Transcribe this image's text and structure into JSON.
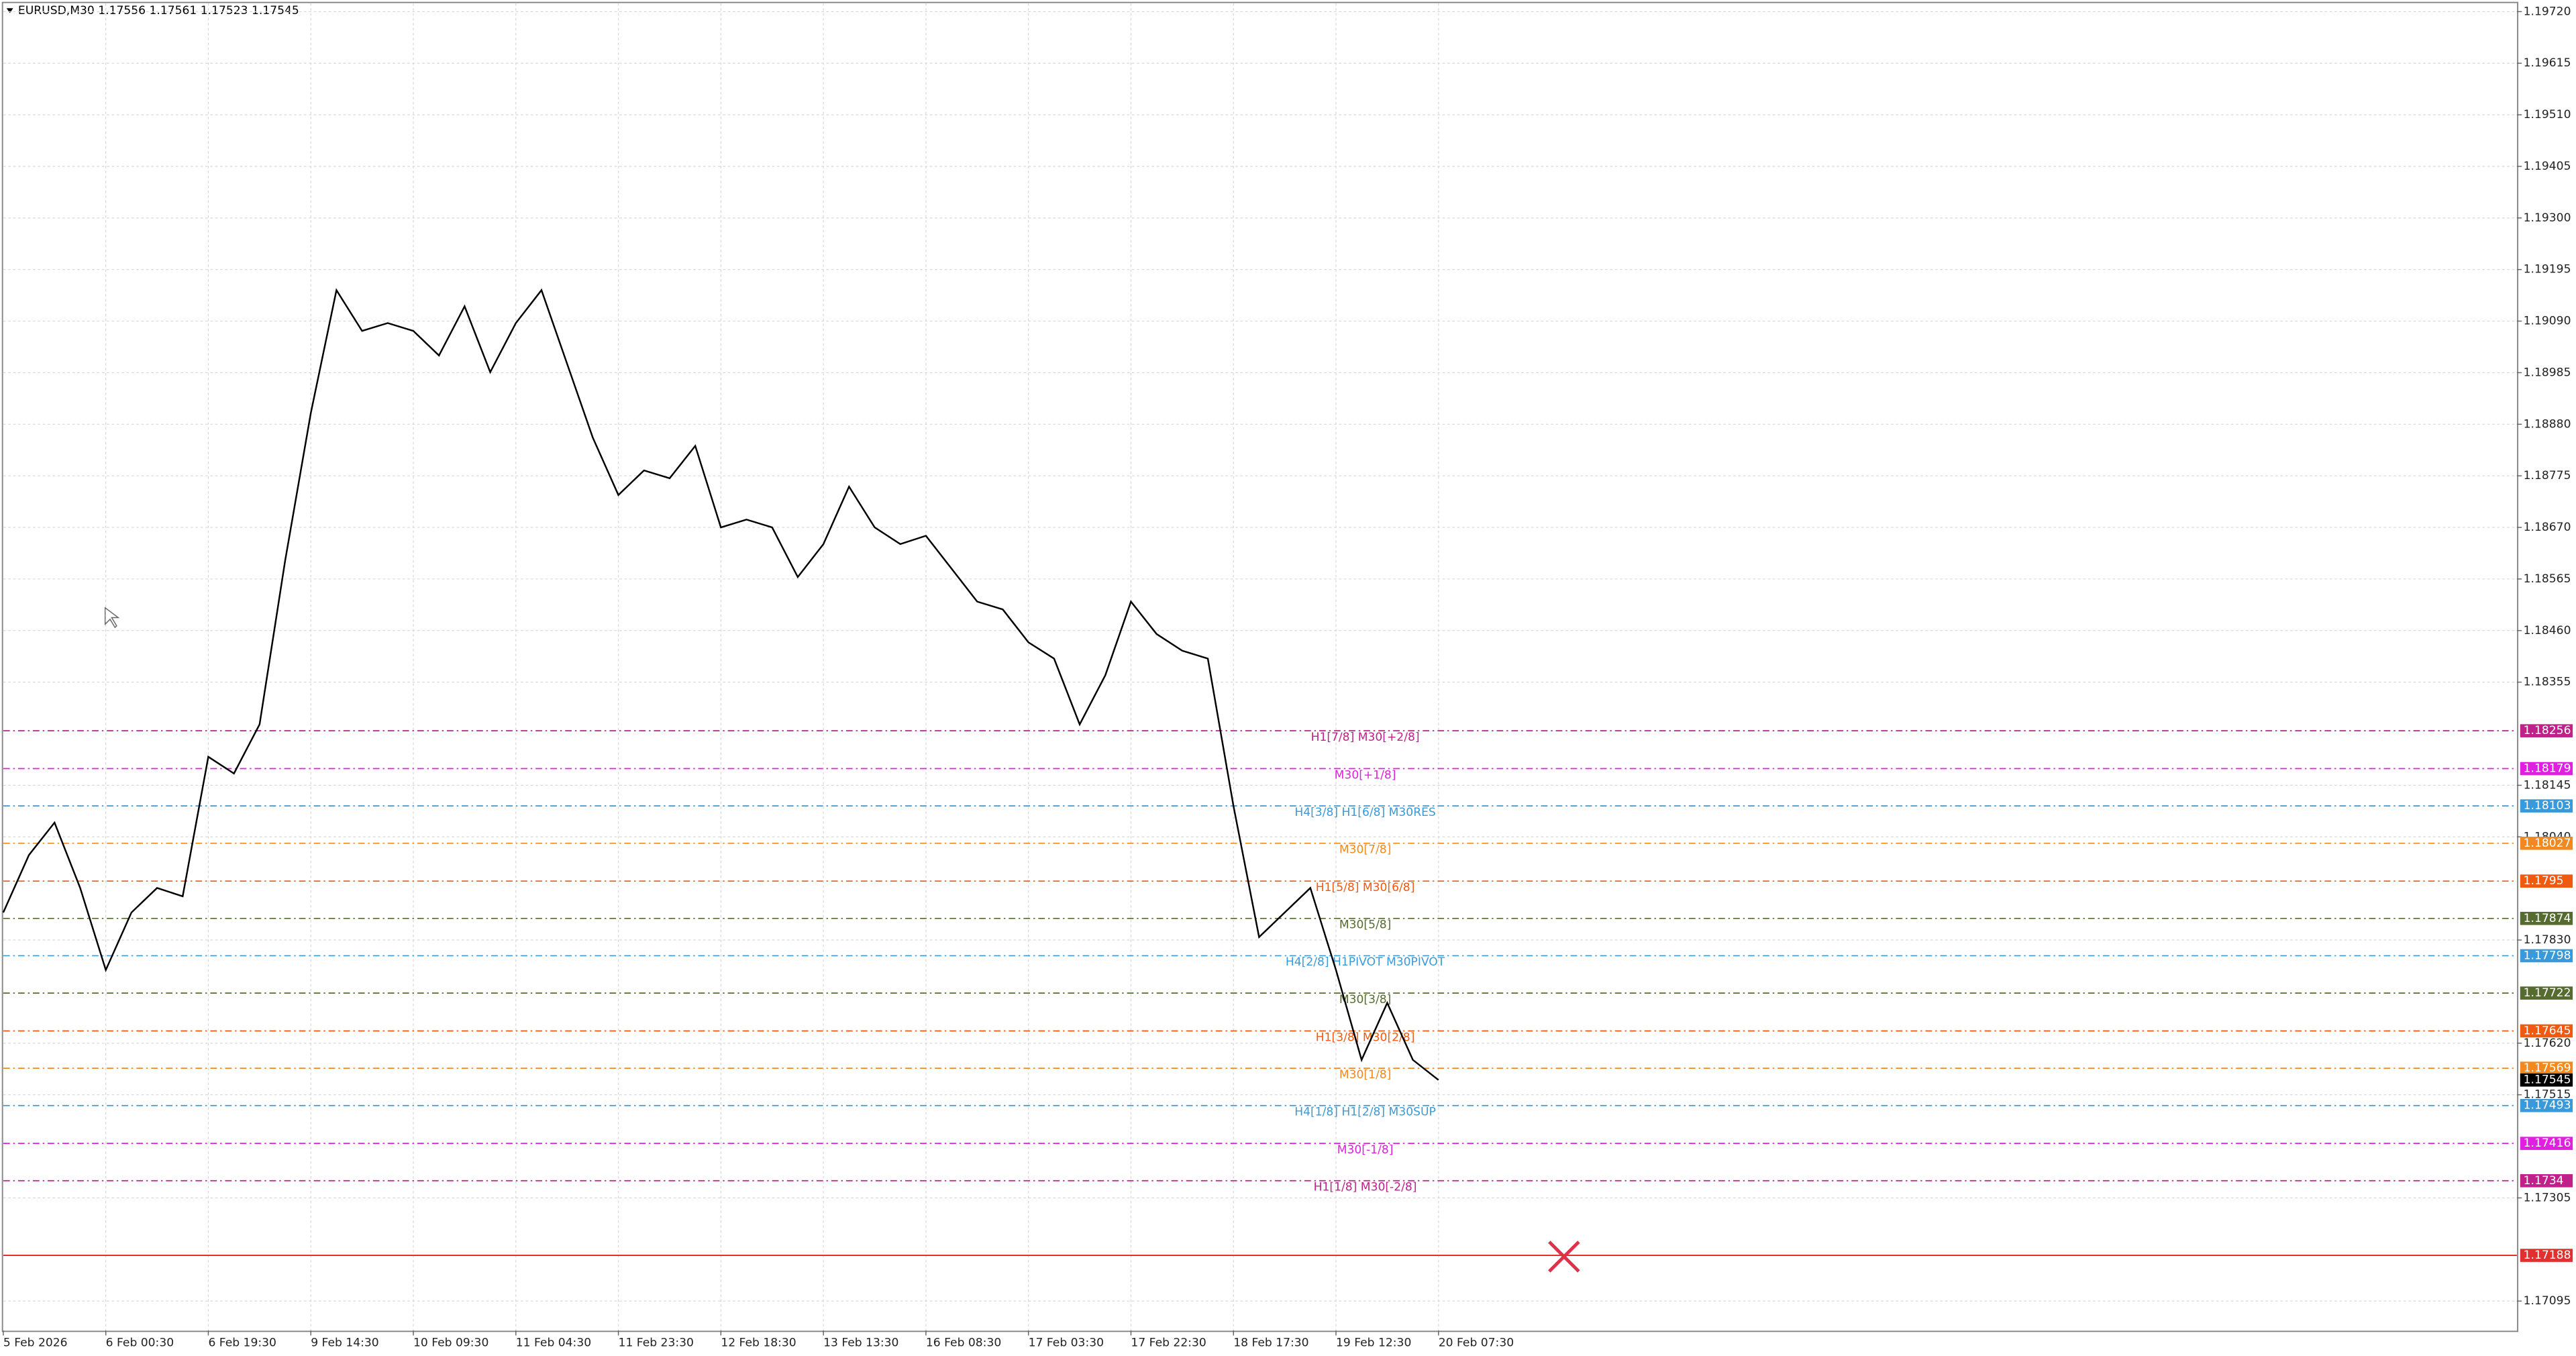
{
  "chart_data": {
    "type": "line",
    "title": "EURUSD,M30 1.17556 1.17561 1.17523 1.17545",
    "categories": [
      "5 Feb 2026",
      null,
      null,
      null,
      "6 Feb 00:30",
      null,
      null,
      null,
      "6 Feb 19:30",
      null,
      null,
      null,
      "9 Feb 14:30",
      null,
      null,
      null,
      "10 Feb 09:30",
      null,
      null,
      null,
      "11 Feb 04:30",
      null,
      null,
      null,
      "11 Feb 23:30",
      null,
      null,
      null,
      "12 Feb 18:30",
      null,
      null,
      null,
      "13 Feb 13:30",
      null,
      null,
      null,
      "16 Feb 08:30",
      null,
      null,
      null,
      "17 Feb 03:30",
      null,
      null,
      null,
      "17 Feb 22:30",
      null,
      null,
      null,
      "18 Feb 17:30",
      null,
      null,
      null,
      "19 Feb 12:30",
      null,
      null,
      null,
      "20 Feb 07:30"
    ],
    "series": [
      {
        "name": "EURUSD,M30",
        "color": "#000000",
        "values": [
          1.17886,
          1.18003,
          1.18069,
          1.17936,
          1.17769,
          1.17886,
          1.17936,
          1.17919,
          1.18203,
          1.18169,
          1.18269,
          1.18603,
          1.18903,
          1.19153,
          1.1907,
          1.19086,
          1.1907,
          1.1902,
          1.1912,
          1.18986,
          1.19086,
          1.19153,
          1.19003,
          1.18853,
          1.18736,
          1.18786,
          1.1877,
          1.18836,
          1.1867,
          1.18686,
          1.1867,
          1.18569,
          1.18636,
          1.18753,
          1.1867,
          1.18636,
          1.18653,
          1.18586,
          1.18519,
          1.18503,
          1.18436,
          1.18403,
          1.18269,
          1.18369,
          1.18519,
          1.18453,
          1.18419,
          1.18403,
          1.18103,
          1.17836,
          1.17886,
          1.17936,
          1.17769,
          1.17586,
          1.17702,
          1.17586,
          1.17545
        ]
      }
    ],
    "ylim": [
      1.17035,
      1.19737
    ],
    "yticks": [
      {
        "value": 1.1972,
        "label": "1.19720"
      },
      1.19615,
      {
        "value": 1.1951,
        "label": "1.19510"
      },
      1.19405,
      {
        "value": 1.193,
        "label": "1.19300"
      },
      1.19195,
      {
        "value": 1.1909,
        "label": "1.19090"
      },
      1.18985,
      {
        "value": 1.1888,
        "label": "1.18880"
      },
      1.18775,
      {
        "value": 1.1867,
        "label": "1.18670"
      },
      1.18565,
      {
        "value": 1.1846,
        "label": "1.18460"
      },
      1.18355,
      1.18145,
      {
        "value": 1.1804,
        "label": "1.18040"
      },
      {
        "value": 1.1783,
        "label": "1.17830"
      },
      {
        "value": 1.1762,
        "label": "1.17620"
      },
      1.17515,
      1.17305,
      1.17095
    ],
    "grid": true,
    "levels": [
      {
        "name": "H1[7/8] M30[+2/8]",
        "value": 1.18256,
        "color": "#c0208a"
      },
      {
        "name": "M30[+1/8]",
        "value": 1.18179,
        "color": "#e020e0"
      },
      {
        "name": "H4[3/8] H1[6/8] M30RES",
        "value": 1.18103,
        "color": "#3a9ad9"
      },
      {
        "name": "M30[7/8]",
        "value": 1.18027,
        "color": "#f08a20"
      },
      {
        "name": "H1[5/8] M30[6/8]",
        "value": 1.1795,
        "color": "#f05a10"
      },
      {
        "name": "M30[5/8]",
        "value": 1.17874,
        "color": "#556b2f"
      },
      {
        "name": "H4[2/8] H1PIVOT M30PIVOT",
        "value": 1.17798,
        "color": "#3a9ad9"
      },
      {
        "name": "M30[3/8]",
        "value": 1.17722,
        "color": "#556b2f"
      },
      {
        "name": "H1[3/8] M30[2/8]",
        "value": 1.17645,
        "color": "#f05a10"
      },
      {
        "name": "M30[1/8]",
        "value": 1.17569,
        "color": "#f08a20"
      },
      {
        "name": "H4[1/8] H1[2/8] M30SUP",
        "value": 1.17493,
        "color": "#3a9ad9"
      },
      {
        "name": "M30[-1/8]",
        "value": 1.17416,
        "color": "#e020e0"
      },
      {
        "name": "H1[1/8] M30[-2/8]",
        "value": 1.1734,
        "color": "#c0208a"
      }
    ],
    "stop_line": {
      "value": 1.17188,
      "color": "#e03030"
    },
    "last_price": 1.17545
  }
}
